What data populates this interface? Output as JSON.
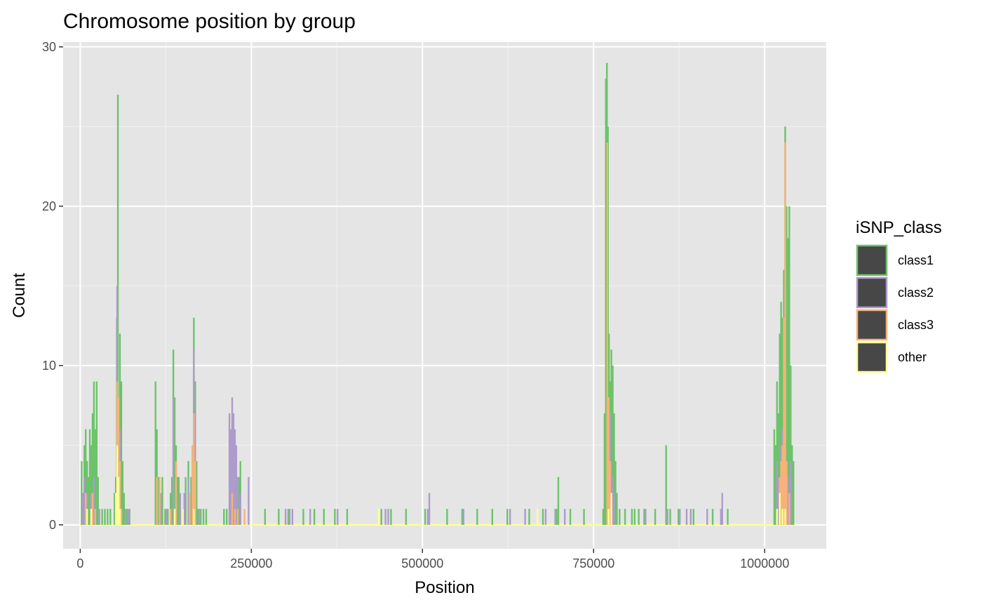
{
  "chart_data": {
    "type": "histogram",
    "title": "Chromosome position by group",
    "xlabel": "Position",
    "ylabel": "Count",
    "xlim": [
      -25000,
      1090000
    ],
    "ylim": [
      -1.5,
      30.3
    ],
    "x_ticks": [
      0,
      250000,
      500000,
      750000,
      1000000
    ],
    "x_tick_labels": [
      "0",
      "250000",
      "500000",
      "750000",
      "1000000"
    ],
    "y_ticks": [
      0,
      10,
      20,
      30
    ],
    "y_tick_labels": [
      "0",
      "10",
      "20",
      "30"
    ],
    "grid": true,
    "bin_width": 1750,
    "x_range": [
      0,
      1045000
    ],
    "legend": {
      "title": "iSNP_class",
      "position": "right",
      "fill_color": "#474747",
      "items": [
        {
          "label": "class1",
          "color": "#6cc36a"
        },
        {
          "label": "class2",
          "color": "#ad9bcb"
        },
        {
          "label": "class3",
          "color": "#f7b279"
        },
        {
          "label": "other",
          "color": "#ffff99"
        }
      ]
    },
    "series": [
      {
        "name": "class1",
        "color": "#6cc36a",
        "points": [
          [
            2000,
            4
          ],
          [
            4000,
            2
          ],
          [
            6000,
            5
          ],
          [
            8000,
            6
          ],
          [
            10000,
            4
          ],
          [
            12000,
            3
          ],
          [
            14000,
            6
          ],
          [
            16000,
            5
          ],
          [
            18000,
            7
          ],
          [
            20000,
            9
          ],
          [
            22000,
            6
          ],
          [
            24000,
            9
          ],
          [
            26000,
            3
          ],
          [
            32000,
            1
          ],
          [
            36000,
            1
          ],
          [
            40000,
            1
          ],
          [
            44000,
            1
          ],
          [
            50000,
            2
          ],
          [
            52000,
            3
          ],
          [
            53500,
            13
          ],
          [
            55000,
            27
          ],
          [
            56500,
            5
          ],
          [
            58000,
            12
          ],
          [
            60000,
            9
          ],
          [
            62000,
            4
          ],
          [
            64000,
            2
          ],
          [
            68000,
            1
          ],
          [
            72000,
            1
          ],
          [
            110000,
            9
          ],
          [
            112000,
            6
          ],
          [
            114000,
            3
          ],
          [
            116000,
            2
          ],
          [
            120000,
            3
          ],
          [
            124000,
            1
          ],
          [
            128000,
            1
          ],
          [
            132000,
            2
          ],
          [
            134000,
            3
          ],
          [
            136000,
            11
          ],
          [
            138000,
            8
          ],
          [
            140000,
            5
          ],
          [
            142000,
            3
          ],
          [
            144000,
            3
          ],
          [
            146000,
            2
          ],
          [
            150000,
            1
          ],
          [
            154000,
            3
          ],
          [
            158000,
            4
          ],
          [
            162000,
            3
          ],
          [
            164000,
            5
          ],
          [
            166000,
            13
          ],
          [
            168000,
            9
          ],
          [
            170000,
            4
          ],
          [
            172000,
            1
          ],
          [
            176000,
            1
          ],
          [
            180000,
            1
          ],
          [
            184000,
            1
          ],
          [
            210000,
            1
          ],
          [
            214000,
            1
          ],
          [
            218000,
            1
          ],
          [
            224000,
            3
          ],
          [
            228000,
            3
          ],
          [
            232000,
            3
          ],
          [
            234000,
            4
          ],
          [
            270000,
            1
          ],
          [
            290000,
            1
          ],
          [
            304000,
            1
          ],
          [
            326000,
            1
          ],
          [
            342000,
            1
          ],
          [
            356000,
            1
          ],
          [
            372000,
            1
          ],
          [
            390000,
            1
          ],
          [
            440000,
            1
          ],
          [
            454000,
            1
          ],
          [
            476000,
            1
          ],
          [
            504000,
            1
          ],
          [
            536000,
            1
          ],
          [
            558000,
            1
          ],
          [
            580000,
            1
          ],
          [
            602000,
            1
          ],
          [
            624000,
            1
          ],
          [
            656000,
            1
          ],
          [
            676000,
            1
          ],
          [
            696000,
            1
          ],
          [
            698500,
            3
          ],
          [
            716000,
            1
          ],
          [
            736000,
            1
          ],
          [
            764000,
            1
          ],
          [
            766000,
            7
          ],
          [
            768000,
            28
          ],
          [
            769500,
            29
          ],
          [
            771000,
            25
          ],
          [
            772500,
            12
          ],
          [
            774000,
            9
          ],
          [
            776000,
            11
          ],
          [
            778000,
            10
          ],
          [
            780000,
            7
          ],
          [
            782000,
            4
          ],
          [
            784000,
            2
          ],
          [
            788000,
            1
          ],
          [
            796000,
            1
          ],
          [
            806000,
            1
          ],
          [
            810000,
            1
          ],
          [
            816000,
            1
          ],
          [
            824000,
            1
          ],
          [
            840000,
            1
          ],
          [
            856000,
            5
          ],
          [
            862000,
            1
          ],
          [
            874000,
            1
          ],
          [
            896000,
            1
          ],
          [
            924000,
            1
          ],
          [
            946000,
            1
          ],
          [
            1014000,
            6
          ],
          [
            1016000,
            5
          ],
          [
            1018000,
            9
          ],
          [
            1020000,
            7
          ],
          [
            1022000,
            12
          ],
          [
            1024000,
            14
          ],
          [
            1026000,
            13
          ],
          [
            1028000,
            16
          ],
          [
            1030000,
            25
          ],
          [
            1032000,
            20
          ],
          [
            1034000,
            18
          ],
          [
            1036000,
            20
          ],
          [
            1038000,
            10
          ],
          [
            1040000,
            5
          ],
          [
            1042000,
            4
          ]
        ]
      },
      {
        "name": "class2",
        "color": "#ad9bcb",
        "points": [
          [
            4000,
            2
          ],
          [
            6000,
            3
          ],
          [
            10000,
            2
          ],
          [
            16000,
            2
          ],
          [
            20000,
            3
          ],
          [
            28000,
            1
          ],
          [
            54000,
            15
          ],
          [
            56000,
            8
          ],
          [
            58000,
            6
          ],
          [
            66000,
            1
          ],
          [
            70000,
            1
          ],
          [
            112000,
            3
          ],
          [
            118000,
            2
          ],
          [
            126000,
            1
          ],
          [
            136000,
            8
          ],
          [
            140000,
            3
          ],
          [
            146000,
            2
          ],
          [
            152000,
            2
          ],
          [
            158000,
            3
          ],
          [
            160000,
            2
          ],
          [
            166000,
            11
          ],
          [
            168000,
            7
          ],
          [
            174000,
            1
          ],
          [
            218000,
            7
          ],
          [
            220000,
            6
          ],
          [
            222000,
            8
          ],
          [
            224000,
            7
          ],
          [
            226000,
            6
          ],
          [
            228000,
            5
          ],
          [
            230000,
            3
          ],
          [
            234000,
            2
          ],
          [
            246000,
            3
          ],
          [
            300000,
            1
          ],
          [
            306000,
            1
          ],
          [
            310000,
            1
          ],
          [
            336000,
            1
          ],
          [
            376000,
            1
          ],
          [
            446000,
            1
          ],
          [
            450000,
            1
          ],
          [
            508000,
            1
          ],
          [
            510000,
            2
          ],
          [
            560000,
            1
          ],
          [
            628000,
            1
          ],
          [
            650000,
            1
          ],
          [
            680000,
            1
          ],
          [
            694000,
            1
          ],
          [
            708000,
            1
          ],
          [
            770000,
            2
          ],
          [
            772000,
            6
          ],
          [
            774000,
            7
          ],
          [
            776000,
            4
          ],
          [
            778000,
            3
          ],
          [
            780000,
            2
          ],
          [
            826000,
            1
          ],
          [
            858000,
            1
          ],
          [
            876000,
            1
          ],
          [
            886000,
            1
          ],
          [
            892000,
            1
          ],
          [
            916000,
            1
          ],
          [
            936000,
            1
          ],
          [
            938000,
            2
          ],
          [
            1018000,
            4
          ],
          [
            1020000,
            3
          ],
          [
            1024000,
            5
          ],
          [
            1026000,
            6
          ],
          [
            1028000,
            7
          ],
          [
            1030000,
            15
          ],
          [
            1034000,
            3
          ],
          [
            1038000,
            4
          ]
        ]
      },
      {
        "name": "class3",
        "color": "#f7b279",
        "points": [
          [
            8000,
            2
          ],
          [
            18000,
            2
          ],
          [
            22000,
            1
          ],
          [
            54000,
            9
          ],
          [
            56000,
            8
          ],
          [
            58000,
            4
          ],
          [
            60000,
            1
          ],
          [
            112000,
            3
          ],
          [
            116000,
            3
          ],
          [
            132000,
            1
          ],
          [
            140000,
            4
          ],
          [
            160000,
            2
          ],
          [
            164000,
            5
          ],
          [
            166000,
            7
          ],
          [
            168000,
            4
          ],
          [
            222000,
            2
          ],
          [
            226000,
            1
          ],
          [
            230000,
            1
          ],
          [
            240000,
            1
          ],
          [
            770000,
            24
          ],
          [
            772000,
            8
          ],
          [
            774000,
            4
          ],
          [
            776000,
            2
          ],
          [
            1022000,
            3
          ],
          [
            1024000,
            4
          ],
          [
            1026000,
            5
          ],
          [
            1028000,
            13
          ],
          [
            1030000,
            24
          ],
          [
            1032000,
            4
          ],
          [
            1036000,
            2
          ]
        ]
      },
      {
        "name": "other",
        "color": "#ffff99",
        "points": [
          [
            10000,
            1
          ],
          [
            16000,
            1
          ],
          [
            52000,
            2
          ],
          [
            54000,
            5
          ],
          [
            56000,
            3
          ],
          [
            58000,
            1
          ],
          [
            138000,
            1
          ],
          [
            150000,
            1
          ],
          [
            166000,
            1
          ],
          [
            436000,
            1
          ],
          [
            668000,
            1
          ],
          [
            772000,
            1
          ],
          [
            776000,
            2
          ],
          [
            1018000,
            1
          ],
          [
            1022000,
            2
          ],
          [
            1026000,
            1
          ],
          [
            1030000,
            1
          ]
        ]
      }
    ]
  }
}
